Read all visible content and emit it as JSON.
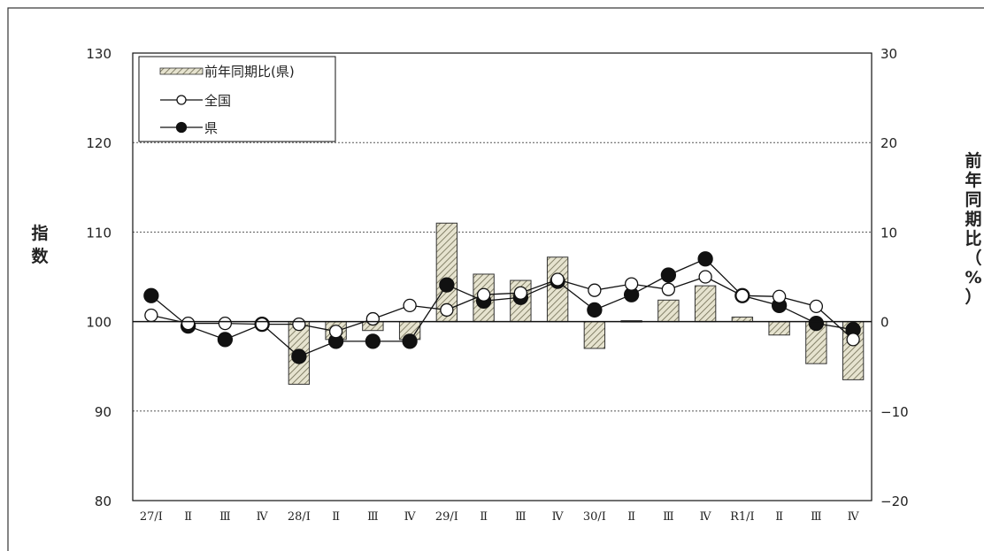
{
  "chart_data": {
    "type": "bar+line",
    "categories": [
      "27/Ⅰ",
      "Ⅱ",
      "Ⅲ",
      "Ⅳ",
      "28/Ⅰ",
      "Ⅱ",
      "Ⅲ",
      "Ⅳ",
      "29/Ⅰ",
      "Ⅱ",
      "Ⅲ",
      "Ⅳ",
      "30/Ⅰ",
      "Ⅱ",
      "Ⅲ",
      "Ⅳ",
      "R1/Ⅰ",
      "Ⅱ",
      "Ⅲ",
      "Ⅳ"
    ],
    "left_axis": {
      "label": "指数",
      "ylim": [
        80,
        130
      ],
      "ticks": [
        "80",
        "90",
        "100",
        "110",
        "120",
        "130"
      ]
    },
    "right_axis": {
      "label": "前年同期比（%）",
      "ylim": [
        -20,
        30
      ],
      "ticks": [
        "−20",
        "−10",
        "0",
        "10",
        "20",
        "30"
      ]
    },
    "grid": "dotted horizontal at 110 and 120",
    "series": [
      {
        "name": "前年同期比(県)",
        "kind": "bar",
        "axis": "right",
        "values": [
          0.0,
          0.0,
          0.0,
          0.0,
          -7.0,
          -2.0,
          -1.0,
          -2.0,
          11.0,
          5.3,
          4.6,
          7.2,
          -3.0,
          0.1,
          2.4,
          4.0,
          0.5,
          -1.5,
          -4.7,
          -6.5
        ]
      },
      {
        "name": "全国",
        "kind": "line",
        "axis": "left",
        "marker": "open-circle",
        "values": [
          100.7,
          99.8,
          99.8,
          99.7,
          99.7,
          98.9,
          100.3,
          101.8,
          101.3,
          103.0,
          103.2,
          104.7,
          103.5,
          104.2,
          103.6,
          105.0,
          102.9,
          102.8,
          101.7,
          98.0
        ]
      },
      {
        "name": "県",
        "kind": "line",
        "axis": "left",
        "marker": "filled-circle",
        "values": [
          102.9,
          99.5,
          98.0,
          99.7,
          96.1,
          97.8,
          97.8,
          97.8,
          104.1,
          102.3,
          102.7,
          104.5,
          101.3,
          103.0,
          105.2,
          107.0,
          102.9,
          101.8,
          99.8,
          99.1
        ]
      }
    ],
    "legend": {
      "placement": "top-left"
    }
  }
}
